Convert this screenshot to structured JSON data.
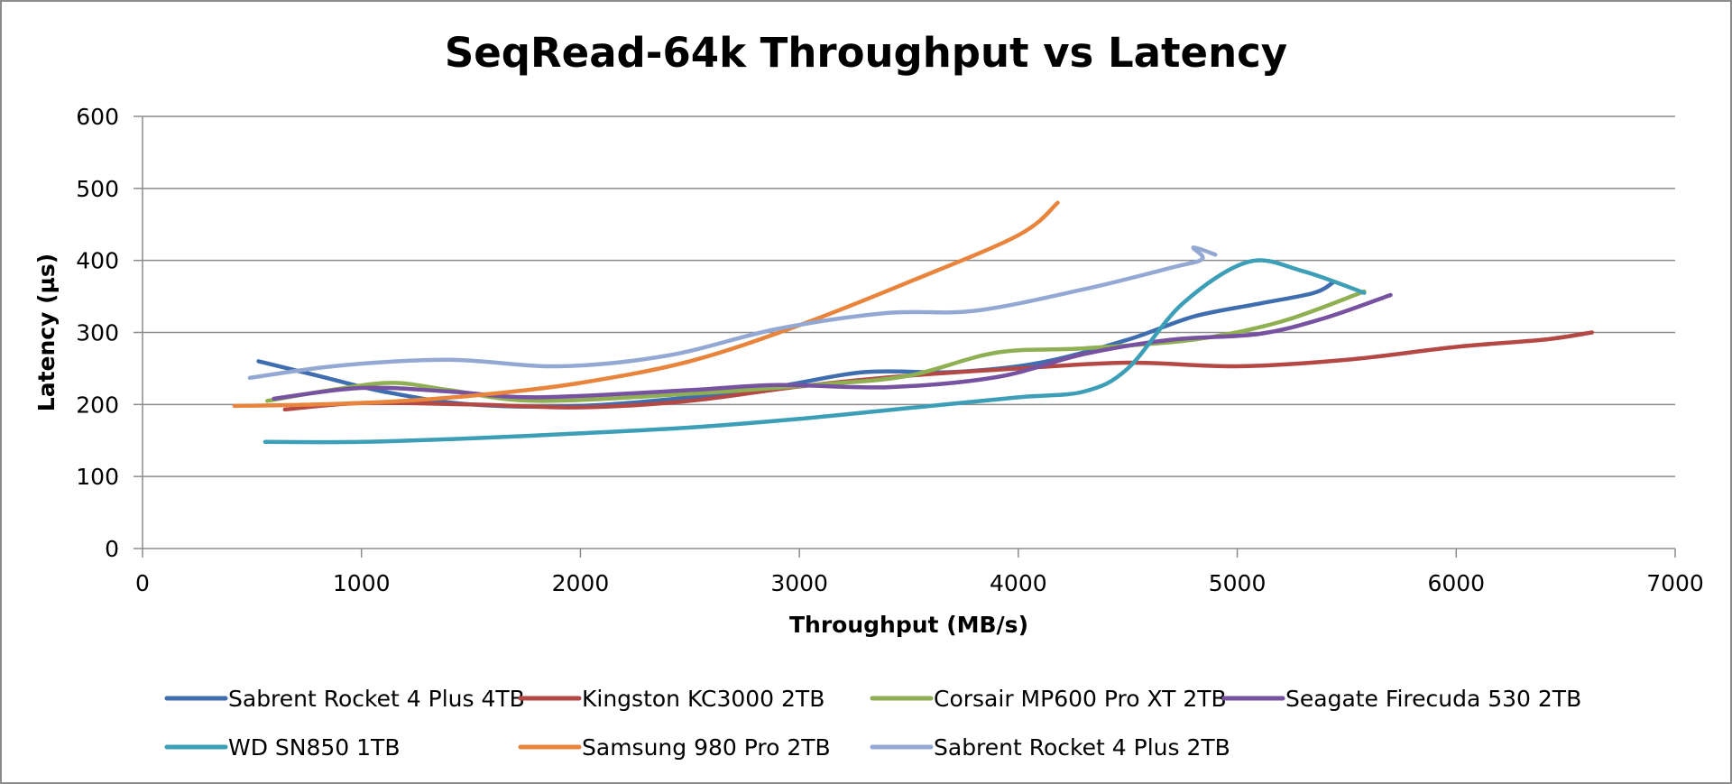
{
  "chart_data": {
    "type": "line",
    "title": "SeqRead-64k Throughput vs Latency",
    "xlabel": "Throughput (MB/s)",
    "ylabel": "Latency (µs)",
    "xlim": [
      0,
      7000
    ],
    "ylim": [
      0,
      600
    ],
    "xticks": [
      0,
      1000,
      2000,
      3000,
      4000,
      5000,
      6000,
      7000
    ],
    "yticks": [
      0,
      100,
      200,
      300,
      400,
      500,
      600
    ],
    "grid": "horizontal",
    "legend_position": "bottom",
    "series": [
      {
        "name": "Sabrent Rocket 4 Plus 4TB",
        "color": "#3f6eb0",
        "points": [
          [
            530,
            260
          ],
          [
            800,
            240
          ],
          [
            1100,
            218
          ],
          [
            1500,
            200
          ],
          [
            2000,
            198
          ],
          [
            2500,
            210
          ],
          [
            2900,
            225
          ],
          [
            3300,
            245
          ],
          [
            3700,
            245
          ],
          [
            4100,
            258
          ],
          [
            4500,
            290
          ],
          [
            4800,
            322
          ],
          [
            5100,
            340
          ],
          [
            5350,
            355
          ],
          [
            5440,
            370
          ]
        ]
      },
      {
        "name": "Kingston KC3000 2TB",
        "color": "#b44845",
        "points": [
          [
            650,
            193
          ],
          [
            1000,
            202
          ],
          [
            1500,
            200
          ],
          [
            2000,
            196
          ],
          [
            2500,
            205
          ],
          [
            3000,
            225
          ],
          [
            3500,
            240
          ],
          [
            4000,
            250
          ],
          [
            4500,
            258
          ],
          [
            5000,
            253
          ],
          [
            5500,
            262
          ],
          [
            6000,
            280
          ],
          [
            6400,
            290
          ],
          [
            6620,
            300
          ]
        ]
      },
      {
        "name": "Corsair MP600 Pro XT 2TB",
        "color": "#8fb052",
        "points": [
          [
            570,
            205
          ],
          [
            900,
            222
          ],
          [
            1150,
            230
          ],
          [
            1400,
            220
          ],
          [
            1800,
            205
          ],
          [
            2500,
            215
          ],
          [
            3100,
            228
          ],
          [
            3500,
            240
          ],
          [
            3900,
            272
          ],
          [
            4300,
            278
          ],
          [
            4800,
            290
          ],
          [
            5200,
            315
          ],
          [
            5580,
            357
          ]
        ]
      },
      {
        "name": "Seagate Firecuda 530 2TB",
        "color": "#7652a0",
        "points": [
          [
            600,
            208
          ],
          [
            1000,
            223
          ],
          [
            1400,
            218
          ],
          [
            1800,
            210
          ],
          [
            2500,
            220
          ],
          [
            2900,
            227
          ],
          [
            3400,
            224
          ],
          [
            3900,
            238
          ],
          [
            4300,
            270
          ],
          [
            4700,
            290
          ],
          [
            5100,
            298
          ],
          [
            5400,
            320
          ],
          [
            5700,
            352
          ]
        ]
      },
      {
        "name": "WD SN850 1TB",
        "color": "#3d9fb7",
        "points": [
          [
            560,
            148
          ],
          [
            1000,
            148
          ],
          [
            1500,
            153
          ],
          [
            2000,
            160
          ],
          [
            2500,
            168
          ],
          [
            3000,
            180
          ],
          [
            3500,
            195
          ],
          [
            4000,
            210
          ],
          [
            4300,
            218
          ],
          [
            4500,
            250
          ],
          [
            4750,
            340
          ],
          [
            5050,
            398
          ],
          [
            5300,
            385
          ],
          [
            5580,
            355
          ]
        ]
      },
      {
        "name": "Samsung 980 Pro 2TB",
        "color": "#e8843c",
        "points": [
          [
            420,
            198
          ],
          [
            800,
            200
          ],
          [
            1200,
            205
          ],
          [
            1600,
            215
          ],
          [
            2000,
            230
          ],
          [
            2500,
            260
          ],
          [
            3000,
            310
          ],
          [
            3500,
            370
          ],
          [
            4000,
            435
          ],
          [
            4180,
            480
          ]
        ]
      },
      {
        "name": "Sabrent Rocket 4 Plus 2TB",
        "color": "#93a9d3",
        "points": [
          [
            490,
            237
          ],
          [
            900,
            254
          ],
          [
            1400,
            262
          ],
          [
            1900,
            253
          ],
          [
            2400,
            268
          ],
          [
            2900,
            305
          ],
          [
            3400,
            327
          ],
          [
            3800,
            330
          ],
          [
            4300,
            360
          ],
          [
            4700,
            390
          ],
          [
            4840,
            402
          ],
          [
            4800,
            418
          ],
          [
            4900,
            408
          ]
        ]
      }
    ]
  }
}
